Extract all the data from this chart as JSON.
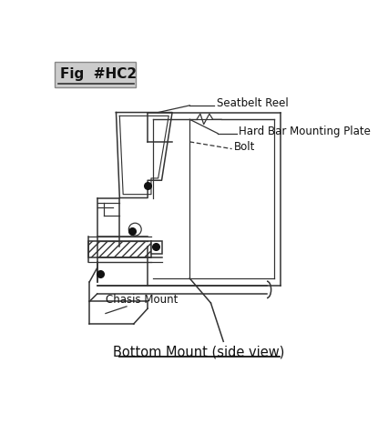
{
  "title": "Fig  #HC2",
  "subtitle": "Bottom Mount (side view)",
  "bg_color": "#ffffff",
  "label_seatbelt": "Seatbelt Reel",
  "label_hardbar": "Hard Bar Mounting Plate",
  "label_bolt": "Bolt",
  "label_chasis": "Chasis Mount",
  "line_color": "#333333",
  "dot_color": "#111111"
}
